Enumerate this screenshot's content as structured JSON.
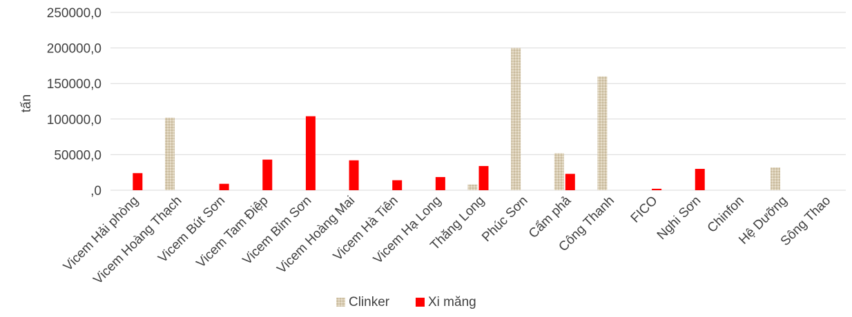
{
  "chart_data": {
    "type": "bar",
    "title": "",
    "xlabel": "",
    "ylabel": "tấn",
    "ylim": [
      0,
      250000
    ],
    "yticks": [
      "250000,0",
      "200000,0",
      "150000,0",
      "100000,0",
      "50000,0",
      ",0"
    ],
    "ytick_values": [
      250000,
      200000,
      150000,
      100000,
      50000,
      0
    ],
    "grid": true,
    "legend_position": "bottom",
    "categories": [
      "Vicem Hải phòng",
      "Vicem Hoàng Thạch",
      "Vicem Bút Sơn",
      "Vicem Tam Điệp",
      "Vicem Bỉm Sơn",
      "Vicem Hoàng Mai",
      "Vicem Hà Tiên",
      "Vicem Hạ Long",
      "Thăng Long",
      "Phúc Sơn",
      "Cẩm phả",
      "Công Thanh",
      "FICO",
      "Nghi Sơn",
      "Chinfon",
      "Hệ Dưỡng",
      "Sông Thao"
    ],
    "series": [
      {
        "name": "Clinker",
        "color": "#d9cdb4",
        "values": [
          0,
          102000,
          0,
          0,
          0,
          0,
          0,
          0,
          8000,
          200000,
          52000,
          160000,
          0,
          0,
          0,
          32000,
          0
        ]
      },
      {
        "name": "Xi măng",
        "color": "#ff0000",
        "values": [
          24000,
          0,
          9000,
          43000,
          104000,
          42000,
          14000,
          18500,
          34000,
          0,
          23000,
          0,
          2000,
          30000,
          0,
          0,
          0
        ]
      }
    ]
  }
}
